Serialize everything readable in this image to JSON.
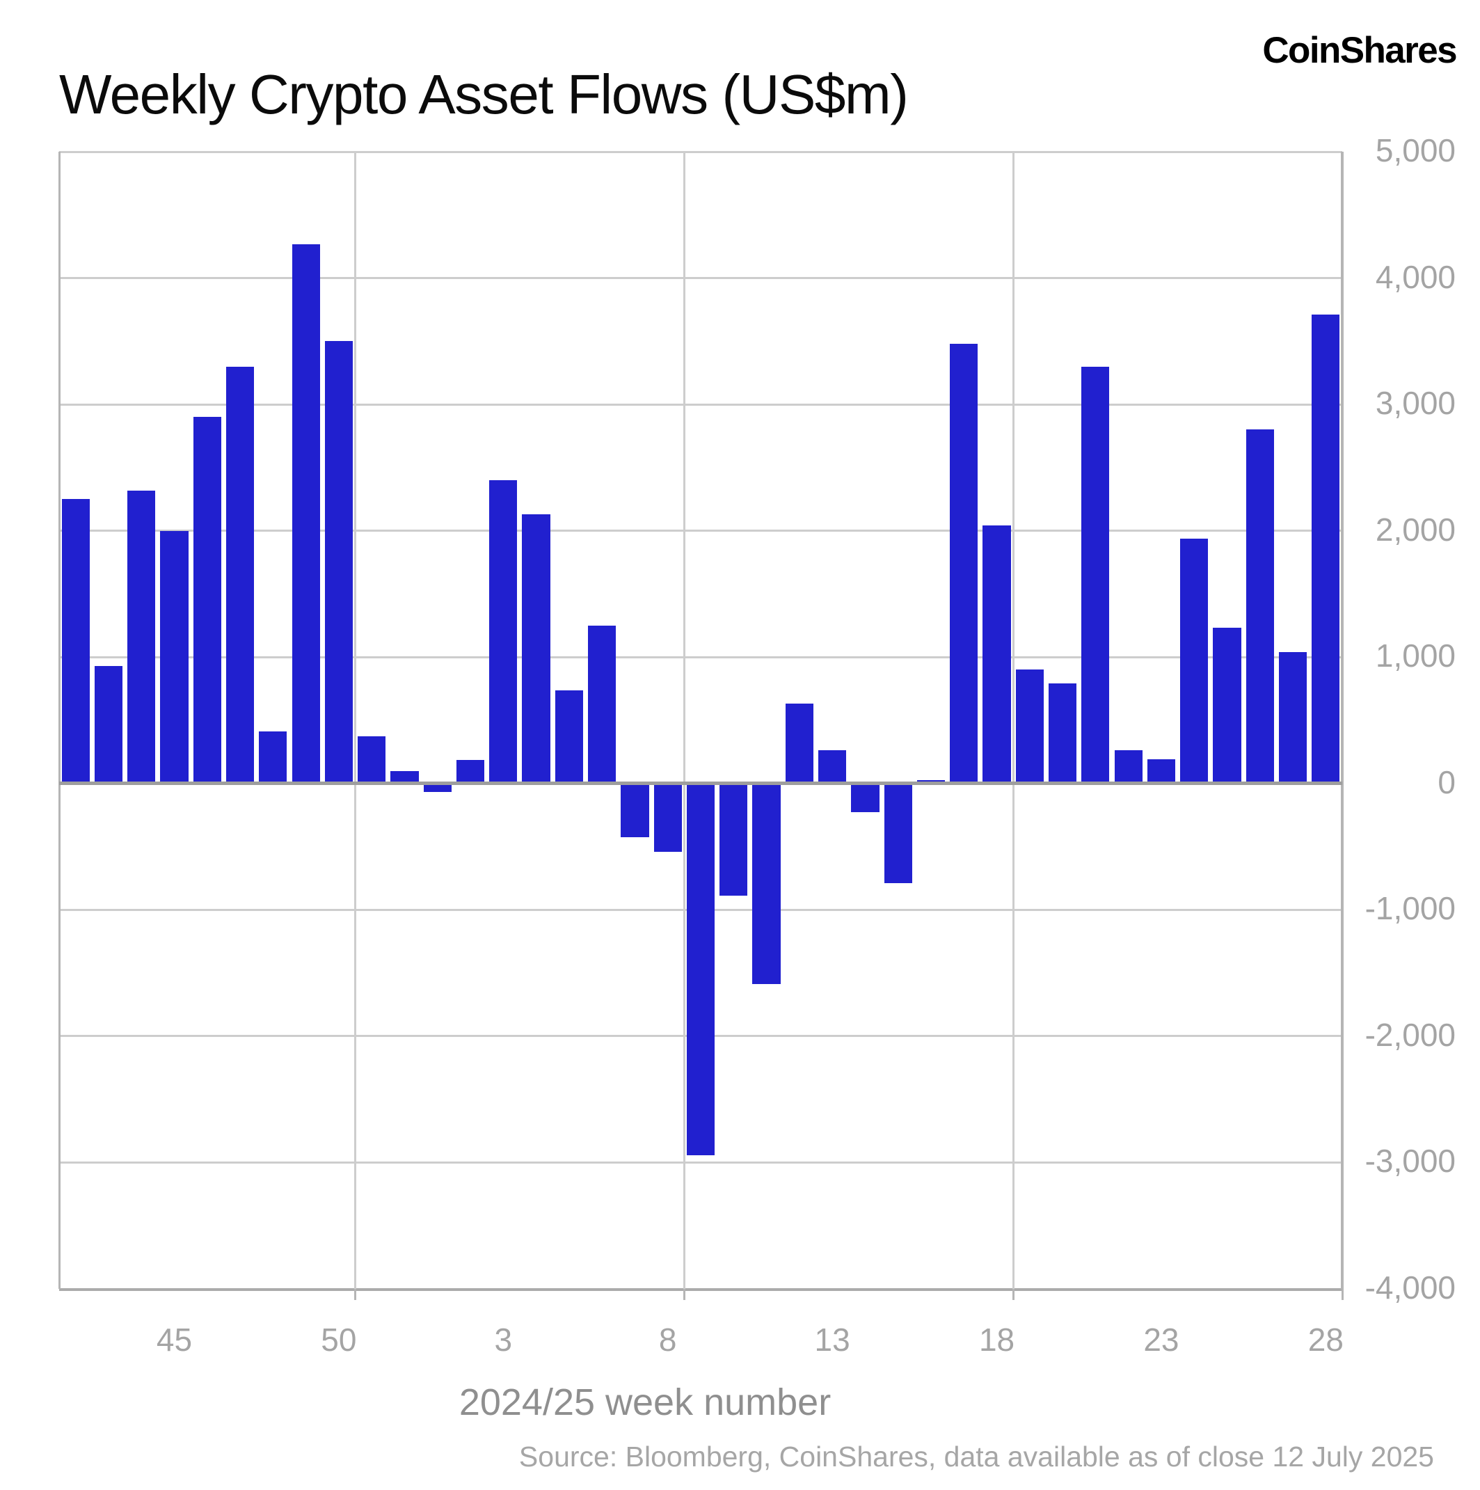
{
  "header": {
    "title": "Weekly Crypto Asset Flows (US$m)",
    "logo": "CoinShares"
  },
  "footer": {
    "source": "Source: Bloomberg, CoinShares, data available as of close 12 July 2025"
  },
  "colors": {
    "bar": "#2120cf",
    "gridline": "#cdcdcd",
    "zero_line": "#9e9e9e",
    "spine": "#b5b5b5",
    "bottom_spine": "#ababab",
    "axis_label": "#a4a4a4",
    "x_title": "#8f8f8f",
    "source_text": "#a6a6a6",
    "title_text": "#0b0b0b"
  },
  "chart_data": {
    "type": "bar",
    "title": "Weekly Crypto Asset Flows (US$m)",
    "xlabel": "2024/25 week number",
    "ylabel": "",
    "ylim": [
      -4000,
      5000
    ],
    "ytick_step": 1000,
    "grid": true,
    "legend": false,
    "categories": [
      "42",
      "43",
      "44",
      "45",
      "46",
      "47",
      "48",
      "49",
      "50",
      "51",
      "52",
      "1",
      "2",
      "3",
      "4",
      "5",
      "6",
      "7",
      "8",
      "9",
      "10",
      "11",
      "12",
      "13",
      "14",
      "15",
      "16",
      "17",
      "18",
      "19",
      "20",
      "21",
      "22",
      "23",
      "24",
      "25",
      "26",
      "27",
      "28"
    ],
    "values": [
      2250,
      930,
      2320,
      2000,
      2900,
      3300,
      410,
      4270,
      3500,
      375,
      100,
      -65,
      185,
      2400,
      2130,
      735,
      1250,
      -425,
      -540,
      -2940,
      -890,
      -1590,
      630,
      265,
      -225,
      -790,
      25,
      3480,
      2040,
      900,
      790,
      3300,
      265,
      190,
      1940,
      1230,
      2800,
      1040,
      3710
    ],
    "x_tick_labels": [
      "45",
      "50",
      "3",
      "8",
      "13",
      "18",
      "23",
      "28"
    ],
    "x_tick_indices": [
      3,
      8,
      13,
      18,
      23,
      28,
      33,
      38
    ],
    "y_tick_labels": [
      "5,000",
      "4,000",
      "3,000",
      "2,000",
      "1,000",
      "0",
      "-1,000",
      "-2,000",
      "-3,000",
      "-4,000"
    ],
    "vgrid_after_indices": [
      8,
      18,
      28,
      38
    ]
  }
}
